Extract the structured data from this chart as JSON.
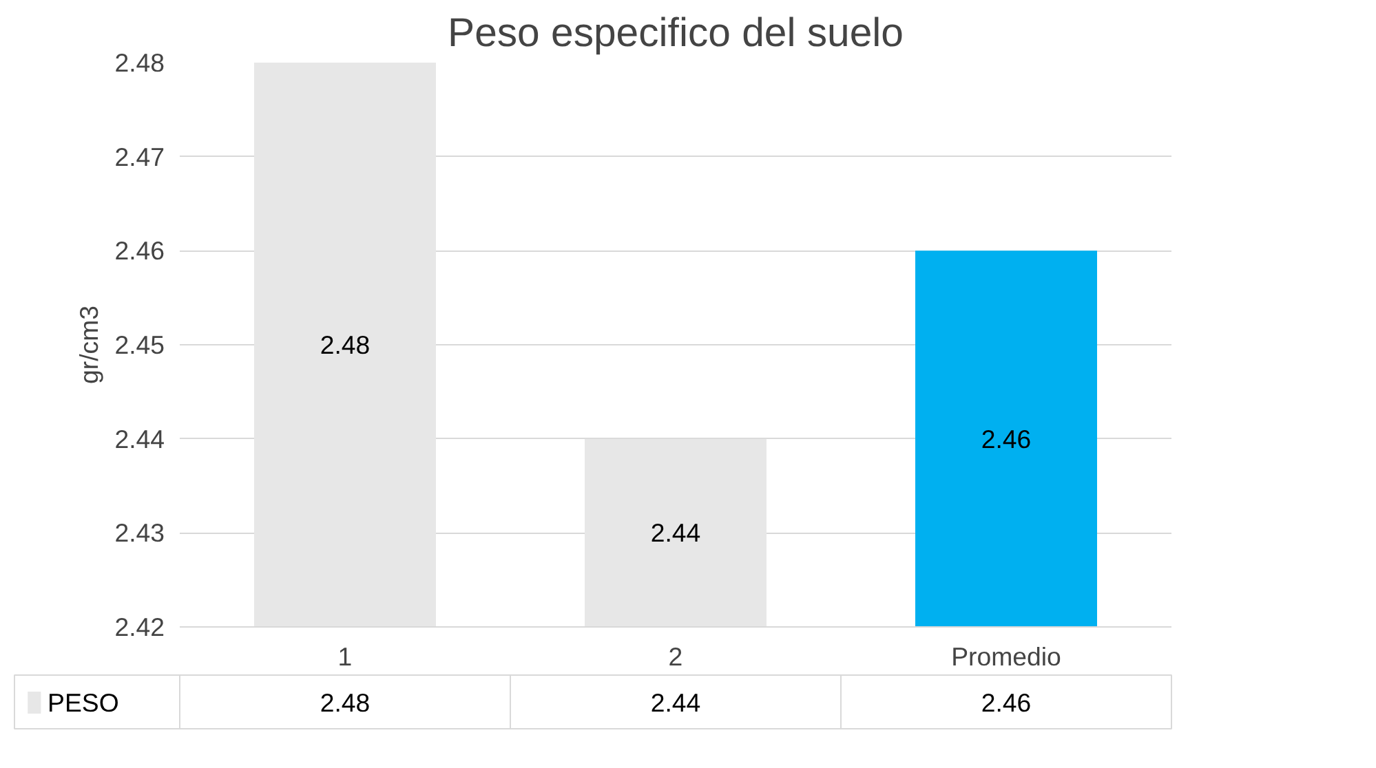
{
  "chart_data": {
    "type": "bar",
    "title": "Peso especifico del suelo",
    "ylabel": "gr/cm3",
    "categories": [
      "1",
      "2",
      "Promedio"
    ],
    "series": [
      {
        "name": "PESO",
        "color": "#e7e7e7",
        "colors": [
          "#e7e7e7",
          "#e7e7e7",
          "#00b0f0"
        ],
        "values": [
          2.48,
          2.44,
          2.46
        ],
        "value_labels": [
          "2.48",
          "2.44",
          "2.46"
        ]
      }
    ],
    "ylim": [
      2.42,
      2.48
    ],
    "yticks": [
      2.42,
      2.43,
      2.44,
      2.45,
      2.46,
      2.47,
      2.48
    ],
    "annotations": [
      "2.48",
      "2.44",
      "2.46"
    ],
    "grid": "y",
    "data_labels": true,
    "legend": "bottom"
  }
}
